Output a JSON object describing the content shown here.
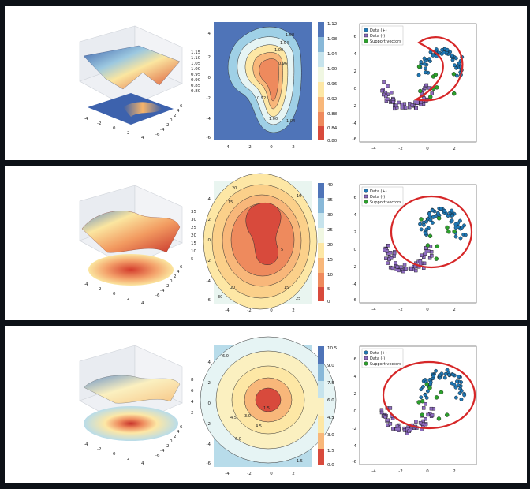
{
  "colors": {
    "background": "#0d1117",
    "panel": "#ffffff",
    "positive_marker": "#1f77b4",
    "negative_marker": "#8e6cc0",
    "support_vector": "#2ca02c",
    "decision_boundary": "#d62728"
  },
  "legend": {
    "pos": "Data (+)",
    "neg": "Data (-)",
    "sv": "Support vectors"
  },
  "rows": [
    {
      "surface_z_ticks": [
        "1.15",
        "1.10",
        "1.05",
        "1.00",
        "0.95",
        "0.90",
        "0.85",
        "0.80"
      ],
      "surface_x_ticks": [
        "-4",
        "-2",
        "0",
        "2",
        "4"
      ],
      "surface_y_ticks": [
        "6",
        "4",
        "2",
        "0",
        "-2",
        "-4",
        "-6"
      ],
      "contour_x_ticks": [
        "-4",
        "-2",
        "0",
        "2"
      ],
      "contour_y_ticks": [
        "4",
        "2",
        "0",
        "-2",
        "-4",
        "-6"
      ],
      "colorbar_ticks": [
        "1.12",
        "1.08",
        "1.04",
        "1.00",
        "0.96",
        "0.92",
        "0.88",
        "0.84",
        "0.80"
      ],
      "contour_labels": [
        "1.08",
        "1.04",
        "1.00",
        "0.96",
        "0.92",
        "1.00",
        "1.04"
      ],
      "scatter_x_ticks": [
        "-4",
        "-2",
        "0",
        "2"
      ],
      "scatter_y_ticks": [
        "6",
        "4",
        "2",
        "0",
        "-2",
        "-4",
        "-6"
      ]
    },
    {
      "surface_z_ticks": [
        "35",
        "30",
        "25",
        "20",
        "15",
        "10",
        "5"
      ],
      "surface_x_ticks": [
        "-4",
        "-2",
        "0",
        "2",
        "4"
      ],
      "surface_y_ticks": [
        "6",
        "4",
        "2",
        "0",
        "-2",
        "-4",
        "-6"
      ],
      "contour_x_ticks": [
        "-4",
        "-2",
        "0",
        "2"
      ],
      "contour_y_ticks": [
        "4",
        "2",
        "0",
        "-2",
        "-4",
        "-6"
      ],
      "colorbar_ticks": [
        "40",
        "35",
        "30",
        "25",
        "20",
        "15",
        "10",
        "5",
        "0"
      ],
      "contour_labels": [
        "20",
        "15",
        "10",
        "5",
        "15",
        "25",
        "20",
        "30"
      ],
      "scatter_x_ticks": [
        "-4",
        "-2",
        "0",
        "2"
      ],
      "scatter_y_ticks": [
        "6",
        "4",
        "2",
        "0",
        "-2",
        "-4",
        "-6"
      ]
    },
    {
      "surface_z_ticks": [
        "8",
        "6",
        "4",
        "2"
      ],
      "surface_x_ticks": [
        "-4",
        "-2",
        "0",
        "2",
        "4"
      ],
      "surface_y_ticks": [
        "6",
        "4",
        "2",
        "0",
        "-2",
        "-4",
        "-6"
      ],
      "contour_x_ticks": [
        "-4",
        "-2",
        "0",
        "2"
      ],
      "contour_y_ticks": [
        "4",
        "2",
        "0",
        "-2",
        "-4",
        "-6"
      ],
      "colorbar_ticks": [
        "10.5",
        "9.0",
        "7.5",
        "6.0",
        "4.5",
        "3.0",
        "1.5",
        "0.0"
      ],
      "contour_labels": [
        "6.0",
        "4.5",
        "3.0",
        "1.5",
        "4.5",
        "6.0",
        "1.5"
      ],
      "scatter_x_ticks": [
        "-4",
        "-2",
        "0",
        "2"
      ],
      "scatter_y_ticks": [
        "6",
        "4",
        "2",
        "0",
        "-2",
        "-4",
        "-6"
      ]
    }
  ],
  "chart_data": [
    {
      "type": "heatmap",
      "kind": "3d-surface",
      "row": 1,
      "zlim": [
        0.8,
        1.15
      ],
      "xlim": [
        -4,
        4
      ],
      "ylim": [
        -6,
        6
      ],
      "colormap": "RdYlBu"
    },
    {
      "type": "heatmap",
      "kind": "filled-contour",
      "row": 1,
      "levels": [
        0.8,
        0.84,
        0.88,
        0.92,
        0.96,
        1.0,
        1.04,
        1.08,
        1.12
      ],
      "xlim": [
        -5,
        3.5
      ],
      "ylim": [
        -6.5,
        5
      ],
      "colormap": "RdYlBu"
    },
    {
      "type": "scatter",
      "row": 1,
      "series": [
        {
          "name": "Data (+)"
        },
        {
          "name": "Data (-)"
        },
        {
          "name": "Support vectors"
        }
      ],
      "xlim": [
        -5,
        4
      ],
      "ylim": [
        -7,
        7
      ]
    },
    {
      "type": "heatmap",
      "kind": "3d-surface",
      "row": 2,
      "zlim": [
        5,
        35
      ],
      "xlim": [
        -4,
        4
      ],
      "ylim": [
        -6,
        6
      ],
      "colormap": "RdYlBu"
    },
    {
      "type": "heatmap",
      "kind": "filled-contour",
      "row": 2,
      "levels": [
        0,
        5,
        10,
        15,
        20,
        25,
        30,
        35,
        40
      ],
      "xlim": [
        -5,
        3.5
      ],
      "ylim": [
        -6.5,
        5
      ],
      "colormap": "RdYlBu"
    },
    {
      "type": "scatter",
      "row": 2,
      "series": [
        {
          "name": "Data (+)"
        },
        {
          "name": "Data (-)"
        },
        {
          "name": "Support vectors"
        }
      ],
      "xlim": [
        -5,
        4
      ],
      "ylim": [
        -7,
        7
      ]
    },
    {
      "type": "heatmap",
      "kind": "3d-surface",
      "row": 3,
      "zlim": [
        2,
        8
      ],
      "xlim": [
        -4,
        4
      ],
      "ylim": [
        -6,
        6
      ],
      "colormap": "RdYlBu"
    },
    {
      "type": "heatmap",
      "kind": "filled-contour",
      "row": 3,
      "levels": [
        0.0,
        1.5,
        3.0,
        4.5,
        6.0,
        7.5,
        9.0,
        10.5
      ],
      "xlim": [
        -5,
        3.5
      ],
      "ylim": [
        -6.5,
        5
      ],
      "colormap": "RdYlBu"
    },
    {
      "type": "scatter",
      "row": 3,
      "series": [
        {
          "name": "Data (+)"
        },
        {
          "name": "Data (-)"
        },
        {
          "name": "Support vectors"
        }
      ],
      "xlim": [
        -5,
        4
      ],
      "ylim": [
        -7,
        7
      ]
    }
  ]
}
